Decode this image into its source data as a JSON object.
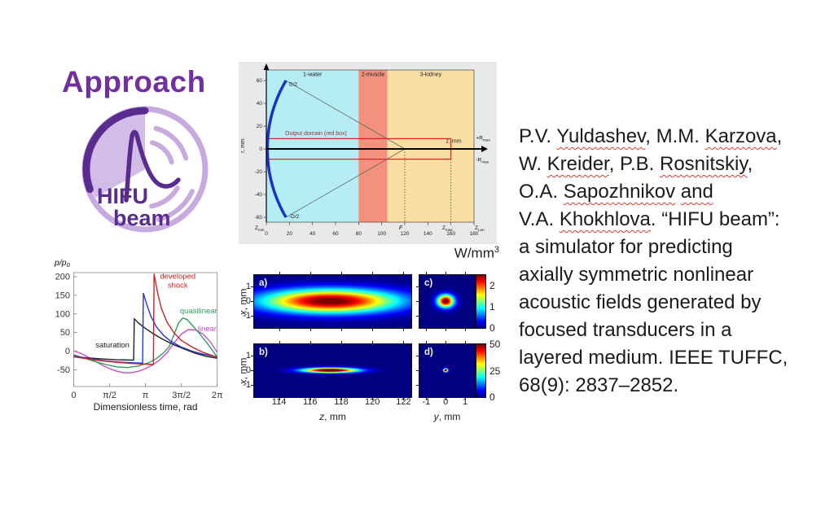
{
  "slide": {
    "title": "Approach",
    "title_color": "#7030a0",
    "background": "#ffffff"
  },
  "logo": {
    "line1": "HIFU",
    "line2": "beam",
    "dark_purple": "#5b2c8f",
    "light_purple": "#c7abdf",
    "wedge_fill": "#d2bce8"
  },
  "citation": {
    "text_color": "#1b1b1b",
    "underline_color": "#e0392e",
    "lines": [
      [
        {
          "t": "P.V. "
        },
        {
          "t": "Yuldashev",
          "u": true
        },
        {
          "t": ", M.M. "
        },
        {
          "t": "Karzova",
          "u": true
        },
        {
          "t": ","
        }
      ],
      [
        {
          "t": "W. "
        },
        {
          "t": "Kreider",
          "u": true
        },
        {
          "t": ", P.B. "
        },
        {
          "t": "Rosnitskiy",
          "u": true
        },
        {
          "t": ","
        }
      ],
      [
        {
          "t": "O.A. "
        },
        {
          "t": "Sapozhnikov",
          "u": true
        },
        {
          "t": " "
        },
        {
          "t": "and",
          "u": true
        }
      ],
      [
        {
          "t": "V.A. "
        },
        {
          "t": "Khokhlova",
          "u": true
        },
        {
          "t": ". “HIFU beam”:"
        }
      ],
      [
        {
          "t": "a simulator for predicting"
        }
      ],
      [
        {
          "t": "axially symmetric nonlinear"
        }
      ],
      [
        {
          "t": "acoustic fields generated by"
        }
      ],
      [
        {
          "t": "focused transducers in a"
        }
      ],
      [
        {
          "t": "layered medium. IEEE TUFFC,"
        }
      ],
      [
        {
          "t": "68(9): 2837–2852."
        }
      ]
    ]
  },
  "diagram": {
    "regions": [
      {
        "label": "1-water",
        "color": "#b6edf5",
        "z": [
          0,
          80
        ]
      },
      {
        "label": "2-muscle",
        "color": "#f2917d",
        "z": [
          80,
          105
        ]
      },
      {
        "label": "3-kidney",
        "color": "#fadfa2",
        "z": [
          105,
          180
        ]
      }
    ],
    "xticks": [
      0,
      20,
      40,
      60,
      80,
      100,
      120,
      140,
      160,
      180
    ],
    "yticks": [
      60,
      40,
      20,
      0,
      -20,
      -40,
      -60
    ],
    "x_axis_label": "z, mm",
    "y_axis_label": "r, mm",
    "labels": {
      "aperture_top": "D/2",
      "aperture_bottom": "-D/2",
      "output_domain": "Output domain (red box)",
      "r_max_plus": {
        "main": "+R",
        "sub": "max"
      },
      "r_max_minus": {
        "main": "-R",
        "sub": "max"
      },
      "z_min": {
        "main": "Z",
        "sub": "min"
      },
      "z_max": {
        "main": "Z",
        "sub": "max"
      },
      "z_len": {
        "main": "Z",
        "sub": "Len"
      },
      "focus": "F"
    },
    "geometry": {
      "focus_z": 120,
      "output_box_z": [
        0,
        160
      ],
      "output_box_r": 9,
      "aperture_r": 60,
      "edge_z": 17
    },
    "colors": {
      "box": "#e02020",
      "arc": "#1733cc",
      "output_text": "#a03434"
    }
  },
  "chart_data": [
    {
      "id": "waveforms-at-focus",
      "type": "line",
      "xlabel": "Dimensionless time, rad",
      "ylabel": {
        "main": "p/p",
        "sub": "0"
      },
      "xtick_labels": [
        "0",
        "π/2",
        "π",
        "3π/2",
        "2π"
      ],
      "xtick_values": [
        0,
        0.5,
        1,
        1.5,
        2
      ],
      "yticks": [
        200,
        150,
        100,
        50,
        0,
        -50
      ],
      "xlim_pi_units": [
        0,
        2
      ],
      "ylim": [
        -95,
        211
      ],
      "grid": false,
      "series": [
        {
          "name": "linear",
          "color": "#c84fc8",
          "points": [
            [
              0,
              1
            ],
            [
              0.1,
              -6
            ],
            [
              0.2,
              -16
            ],
            [
              0.3,
              -27
            ],
            [
              0.4,
              -38
            ],
            [
              0.5,
              -47
            ],
            [
              0.6,
              -54
            ],
            [
              0.7,
              -58
            ],
            [
              0.8,
              -58
            ],
            [
              0.9,
              -54
            ],
            [
              1.0,
              -47
            ],
            [
              1.1,
              -37
            ],
            [
              1.2,
              -23
            ],
            [
              1.3,
              -4
            ],
            [
              1.4,
              22
            ],
            [
              1.5,
              46
            ],
            [
              1.6,
              58
            ],
            [
              1.7,
              57
            ],
            [
              1.8,
              46
            ],
            [
              1.9,
              26
            ],
            [
              2.0,
              -3
            ]
          ]
        },
        {
          "name": "quasilinear",
          "color": "#2f9e5f",
          "points": [
            [
              0,
              -10
            ],
            [
              0.15,
              -19
            ],
            [
              0.3,
              -28
            ],
            [
              0.45,
              -36
            ],
            [
              0.6,
              -42
            ],
            [
              0.75,
              -44
            ],
            [
              0.9,
              -40
            ],
            [
              1.05,
              -31
            ],
            [
              1.15,
              -20
            ],
            [
              1.25,
              -5
            ],
            [
              1.33,
              12
            ],
            [
              1.4,
              45
            ],
            [
              1.46,
              75
            ],
            [
              1.52,
              89
            ],
            [
              1.58,
              85
            ],
            [
              1.65,
              70
            ],
            [
              1.75,
              48
            ],
            [
              1.85,
              24
            ],
            [
              1.95,
              -2
            ],
            [
              2.0,
              -16
            ]
          ]
        },
        {
          "name": "saturation",
          "color": "#202020",
          "points": [
            [
              0,
              -15
            ],
            [
              0.2,
              -18
            ],
            [
              0.4,
              -21
            ],
            [
              0.6,
              -23
            ],
            [
              0.8,
              -24
            ],
            [
              0.835,
              -24
            ],
            [
              0.845,
              87
            ],
            [
              0.9,
              76
            ],
            [
              1.0,
              61
            ],
            [
              1.1,
              48
            ],
            [
              1.25,
              31
            ],
            [
              1.4,
              17
            ],
            [
              1.55,
              5
            ],
            [
              1.7,
              -6
            ],
            [
              1.85,
              -14
            ],
            [
              2.0,
              -19
            ]
          ]
        },
        {
          "name": "shock (unlabeled)",
          "color": "#2535c8",
          "points": [
            [
              0,
              -13
            ],
            [
              0.2,
              -19
            ],
            [
              0.4,
              -25
            ],
            [
              0.6,
              -29
            ],
            [
              0.8,
              -31
            ],
            [
              0.96,
              -32
            ],
            [
              0.97,
              155
            ],
            [
              1.02,
              124
            ],
            [
              1.08,
              92
            ],
            [
              1.15,
              66
            ],
            [
              1.25,
              43
            ],
            [
              1.35,
              27
            ],
            [
              1.5,
              11
            ],
            [
              1.65,
              0
            ],
            [
              1.8,
              -8
            ],
            [
              2.0,
              -15
            ]
          ]
        },
        {
          "name": "developed shock",
          "color": "#cc2222",
          "points": [
            [
              0,
              -15
            ],
            [
              0.2,
              -21
            ],
            [
              0.4,
              -26
            ],
            [
              0.6,
              -30
            ],
            [
              0.8,
              -33
            ],
            [
              1.0,
              -35
            ],
            [
              1.11,
              -36
            ],
            [
              1.12,
              207
            ],
            [
              1.17,
              156
            ],
            [
              1.22,
              116
            ],
            [
              1.3,
              78
            ],
            [
              1.4,
              49
            ],
            [
              1.5,
              29
            ],
            [
              1.65,
              11
            ],
            [
              1.8,
              -3
            ],
            [
              2.0,
              -16
            ]
          ]
        }
      ],
      "annotations": [
        {
          "lines": [
            "developed",
            "shock"
          ],
          "color": "#cc2222",
          "t": 1.45,
          "p": 195
        },
        {
          "lines": [
            "quasilinear"
          ],
          "color": "#2f9e5f",
          "t": 1.74,
          "p": 102
        },
        {
          "lines": [
            "linear"
          ],
          "color": "#c84fc8",
          "t": 1.86,
          "p": 54
        },
        {
          "lines": [
            "saturation"
          ],
          "color": "#202020",
          "t": 0.54,
          "p": 10
        }
      ]
    },
    {
      "id": "heat-deposition-maps",
      "type": "heatmap",
      "unit": {
        "main": "W/mm",
        "sup": "3"
      },
      "colormap": "jet",
      "y_axis": {
        "label": "x, mm",
        "ticks": [
          1,
          0,
          -1
        ],
        "ylim": [
          -1.8,
          1.75
        ]
      },
      "x_axes": {
        "z": {
          "label": "z, mm",
          "ticks": [
            114,
            116,
            118,
            120,
            122
          ],
          "xlim": [
            112.4,
            122.5
          ]
        },
        "y": {
          "label": "y, mm",
          "ticks": [
            -1,
            0,
            1
          ],
          "xlim": [
            -1.35,
            1.5
          ]
        }
      },
      "panels": [
        {
          "label": "a)",
          "axis": "z",
          "center": [
            117.3,
            0
          ],
          "sigma": [
            3.0,
            0.55
          ],
          "peak": 2.6,
          "cmax": 2.5
        },
        {
          "label": "b)",
          "axis": "z",
          "center": [
            117.3,
            0
          ],
          "sigma": [
            1.2,
            0.115
          ],
          "peak": 58,
          "cmax": 50
        },
        {
          "label": "c)",
          "axis": "y",
          "center": [
            0,
            0
          ],
          "sigma": [
            0.3,
            0.3
          ],
          "peak": 2.6,
          "cmax": 2.5
        },
        {
          "label": "d)",
          "axis": "y",
          "center": [
            0,
            0
          ],
          "sigma": [
            0.08,
            0.08
          ],
          "peak": 58,
          "cmax": 50
        }
      ],
      "colorbars": [
        {
          "ticks": [
            2,
            1,
            0
          ],
          "max": 2.5
        },
        {
          "ticks": [
            50,
            25,
            0
          ],
          "max": 50
        }
      ]
    }
  ]
}
